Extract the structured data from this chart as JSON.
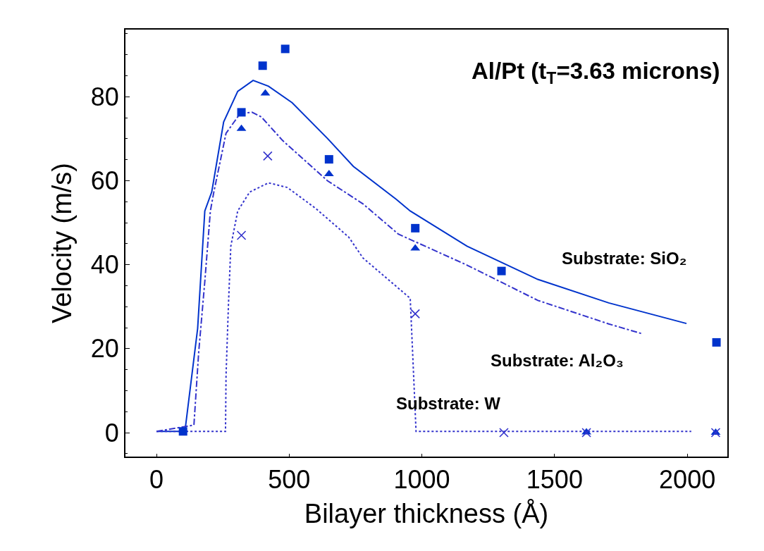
{
  "chart_data": {
    "type": "line",
    "title": "Al/Pt (t$_{T}$=3.63 microns)",
    "xlabel": "Bilayer thickness (Å)",
    "ylabel": "Velocity (m/s)",
    "xlim": [
      -117,
      2151
    ],
    "ylim": [
      -5.7,
      96
    ],
    "xticks": [
      0,
      500,
      1000,
      1500,
      2000
    ],
    "yticks": [
      0,
      20,
      40,
      60,
      80
    ],
    "legend": false,
    "series": [
      {
        "name": "Substrate: SiO₂",
        "line_style": "solid",
        "marker": "none",
        "color": "#0033cc",
        "x": [
          0,
          107,
          155,
          182,
          208,
          253,
          306,
          364,
          422,
          511,
          644,
          742,
          903,
          956,
          1170,
          1437,
          1704,
          1997
        ],
        "values": [
          0.3,
          0.3,
          24.8,
          52.8,
          57.3,
          74,
          81.3,
          83.9,
          82.5,
          78.6,
          70.1,
          63.4,
          55.6,
          52.8,
          44.4,
          36.5,
          30.9,
          26
        ]
      },
      {
        "name": "Substrate: Al₂O₃",
        "line_style": "dashdot",
        "marker": "none",
        "color": "#3333cc",
        "x": [
          0,
          141,
          159,
          182,
          203,
          216,
          262,
          315,
          360,
          395,
          475,
          644,
          778,
          911,
          1170,
          1437,
          1704,
          1828
        ],
        "values": [
          0.3,
          1.8,
          19.2,
          36,
          52.8,
          57.3,
          71.3,
          76,
          76.3,
          75.2,
          69.6,
          60,
          54.5,
          47.3,
          39.9,
          31.5,
          25.9,
          23.6
        ]
      },
      {
        "name": "Substrate: W",
        "line_style": "dotted",
        "marker": "none",
        "color": "#3333cc",
        "x": [
          0,
          260,
          262,
          271,
          280,
          306,
          351,
          422,
          493,
          600,
          724,
          778,
          956,
          965,
          978,
          2015
        ],
        "values": [
          0.3,
          0.3,
          13.6,
          30.3,
          44.4,
          52.8,
          57.3,
          59.5,
          58.4,
          53.4,
          46.6,
          41.6,
          32,
          19.2,
          0.3,
          0.3
        ]
      },
      {
        "type": "scatter",
        "marker": "square",
        "color": "#0033cc",
        "x": [
          100,
          320,
          400,
          485,
          650,
          975,
          1300,
          2110
        ],
        "values": [
          0.3,
          76.3,
          87.4,
          91.4,
          65.1,
          48.7,
          38.5,
          21.5
        ]
      },
      {
        "type": "scatter",
        "marker": "triangle",
        "color": "#0033cc",
        "x": [
          320,
          410,
          650,
          975,
          1620,
          2107
        ],
        "values": [
          72.4,
          80.8,
          61.6,
          43.9,
          0.1,
          0
        ]
      },
      {
        "type": "scatter",
        "marker": "cross",
        "color": "#3333cc",
        "x": [
          320,
          419,
          975,
          1309,
          1620,
          2107
        ],
        "values": [
          47,
          65.9,
          28.3,
          0,
          0,
          0
        ]
      }
    ]
  }
}
